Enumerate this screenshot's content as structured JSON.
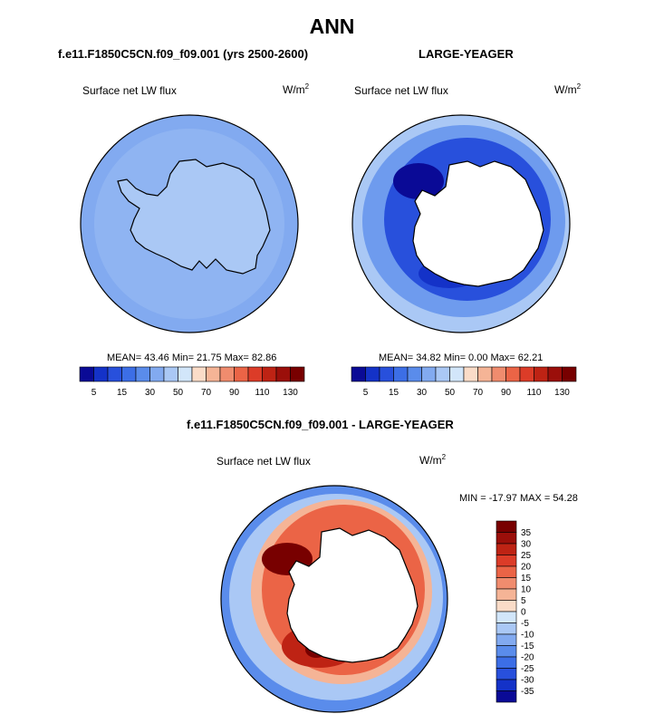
{
  "main_title": "ANN",
  "panels": {
    "left": {
      "case": "f.e11.F1850C5CN.f09_f09.001 (yrs 2500-2600)",
      "variable": "Surface net LW flux",
      "units_base": "W/m",
      "units_exp": "2",
      "stats": "MEAN= 43.46  Min= 21.75  Max= 82.86"
    },
    "right": {
      "case": "LARGE-YEAGER",
      "variable": "Surface net LW flux",
      "units_base": "W/m",
      "units_exp": "2",
      "stats": "MEAN= 34.82  Min=  0.00  Max= 62.21"
    },
    "diff": {
      "case": "f.e11.F1850C5CN.f09_f09.001 - LARGE-YEAGER",
      "variable": "Surface net LW flux",
      "units_base": "W/m",
      "units_exp": "2",
      "stats": "MIN = -17.97 MAX =  54.28"
    }
  },
  "colorbar_main": {
    "colors": [
      "#0a0a96",
      "#1432c8",
      "#2850dc",
      "#3c6ee6",
      "#5a8ceb",
      "#82aaf0",
      "#aac8f5",
      "#d2e6fa",
      "#fadcc8",
      "#f5b496",
      "#f08c6e",
      "#eb6446",
      "#dc3c28",
      "#be2314",
      "#9b0f0a",
      "#780000"
    ],
    "tick_labels": [
      "5",
      "15",
      "30",
      "50",
      "70",
      "90",
      "110",
      "130"
    ]
  },
  "colorbar_diff": {
    "colors": [
      "#780000",
      "#9b0f0a",
      "#be2314",
      "#dc3c28",
      "#eb6446",
      "#f08c6e",
      "#f5b496",
      "#fadcc8",
      "#d2e6fa",
      "#aac8f5",
      "#82aaf0",
      "#5a8ceb",
      "#3c6ee6",
      "#2850dc",
      "#1432c8",
      "#0a0a96"
    ],
    "tick_labels": [
      "35",
      "30",
      "25",
      "20",
      "15",
      "10",
      "5",
      "0",
      "-5",
      "-10",
      "-15",
      "-20",
      "-25",
      "-30",
      "-35"
    ]
  },
  "map_colors": {
    "ocean_left": "#82aaf0",
    "ocean_left_light": "#aac8f5",
    "land_left": "#aac8f5",
    "ocean_right": "#aac8f5",
    "ocean_right_mid": "#5a8ceb",
    "ring_right": "#2850dc",
    "ring_right_dark": "#0a0a96",
    "diff_outer": "#5a8ceb",
    "diff_mid": "#aac8f5",
    "diff_ring": "#eb6446",
    "diff_ring_dark": "#be2314",
    "diff_ring_darkest": "#780000",
    "land_blank": "#ffffff"
  }
}
